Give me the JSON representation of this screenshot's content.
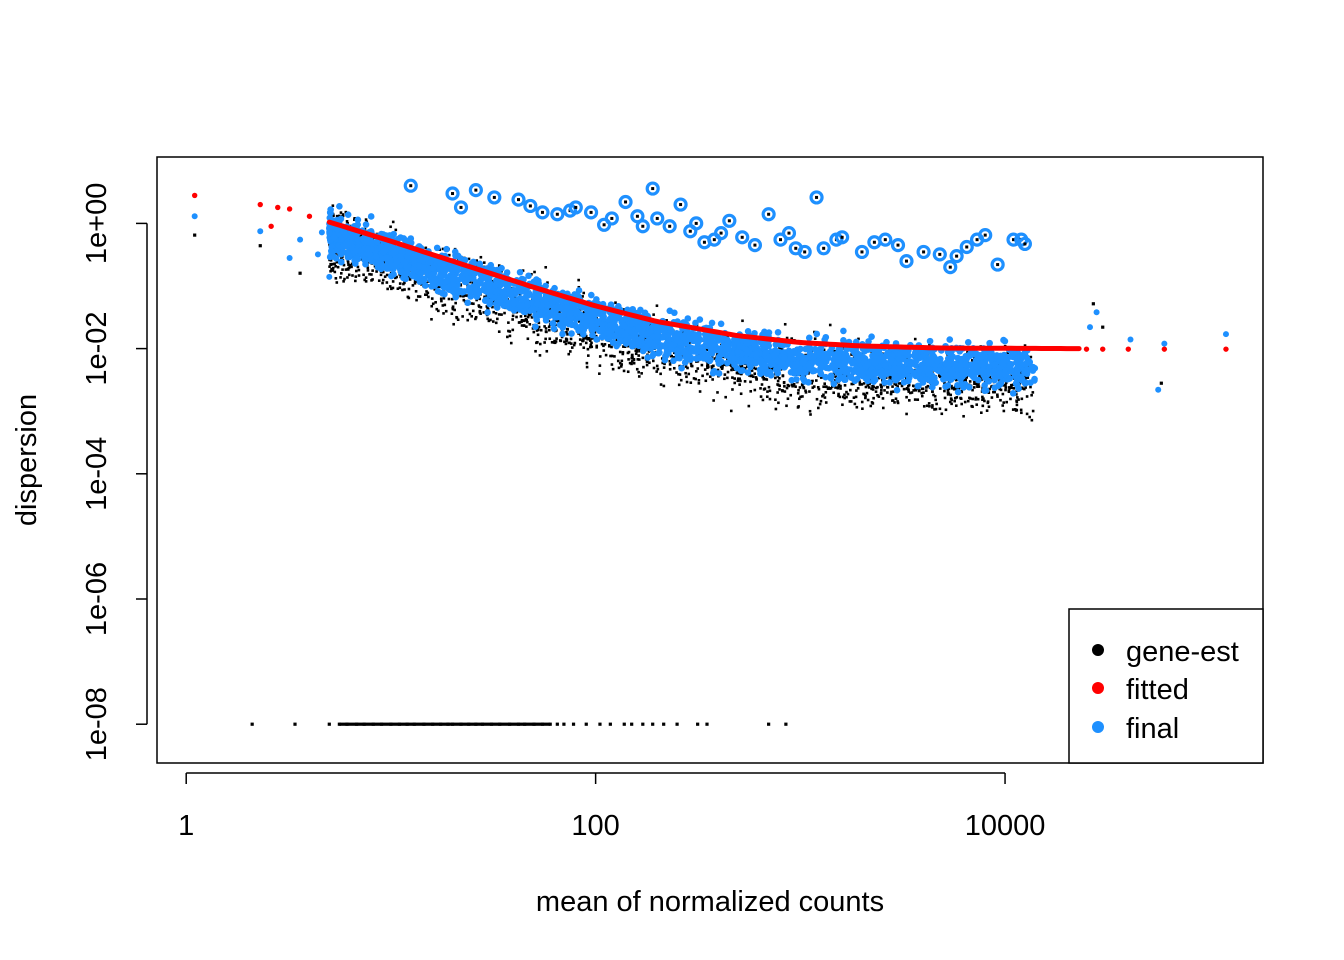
{
  "chart_data": {
    "type": "scatter",
    "xlabel": "mean of normalized counts",
    "ylabel": "dispersion",
    "x_scale": "log10",
    "y_scale": "log10",
    "xlim": [
      0.72,
      182000
    ],
    "ylim": [
      2.4e-09,
      11.5
    ],
    "x_ticks": [
      1,
      100,
      10000
    ],
    "x_tick_labels": [
      "1",
      "100",
      "10000"
    ],
    "y_ticks": [
      1e-08,
      1e-06,
      0.0001,
      0.01,
      1
    ],
    "y_tick_labels": [
      "1e-08",
      "1e-06",
      "1e-04",
      "1e-02",
      "1e+00"
    ],
    "legend": {
      "position": "bottom-right",
      "entries": [
        {
          "label": "gene-est",
          "color": "#000000"
        },
        {
          "label": "fitted",
          "color": "#ff0000"
        },
        {
          "label": "final",
          "color": "#1e90ff"
        }
      ]
    },
    "colors": {
      "gene_est": "#000000",
      "fitted": "#ff0000",
      "final": "#1e90ff"
    },
    "fitted_trend": {
      "x": [
        5,
        10,
        20,
        50,
        100,
        200,
        500,
        1000,
        2000,
        5000,
        10000,
        23000
      ],
      "y": [
        1.05,
        0.52,
        0.25,
        0.095,
        0.048,
        0.027,
        0.016,
        0.0125,
        0.011,
        0.0102,
        0.0101,
        0.01
      ]
    },
    "sparse_points": {
      "fitted": [
        {
          "x": 1.1,
          "y": 2.8
        },
        {
          "x": 2.3,
          "y": 2.0
        },
        {
          "x": 2.8,
          "y": 1.8
        },
        {
          "x": 3.2,
          "y": 1.7
        },
        {
          "x": 2.6,
          "y": 0.9
        },
        {
          "x": 4.0,
          "y": 1.3
        },
        {
          "x": 25000,
          "y": 0.0098
        },
        {
          "x": 30000,
          "y": 0.0098
        },
        {
          "x": 40000,
          "y": 0.0098
        },
        {
          "x": 60000,
          "y": 0.0098
        },
        {
          "x": 120000,
          "y": 0.0098
        }
      ],
      "final": [
        {
          "x": 1.1,
          "y": 1.3
        },
        {
          "x": 2.3,
          "y": 0.75
        },
        {
          "x": 3.6,
          "y": 0.55
        },
        {
          "x": 3.2,
          "y": 0.28
        },
        {
          "x": 4.6,
          "y": 0.72
        },
        {
          "x": 4.4,
          "y": 0.32
        },
        {
          "x": 5.0,
          "y": 0.14
        },
        {
          "x": 28000,
          "y": 0.038
        },
        {
          "x": 26000,
          "y": 0.022
        },
        {
          "x": 41000,
          "y": 0.014
        },
        {
          "x": 60000,
          "y": 0.012
        },
        {
          "x": 56000,
          "y": 0.0022
        },
        {
          "x": 120000,
          "y": 0.017
        }
      ],
      "gene_est": [
        {
          "x": 1.1,
          "y": 0.65
        },
        {
          "x": 2.3,
          "y": 0.44
        },
        {
          "x": 3.6,
          "y": 0.16
        },
        {
          "x": 27000,
          "y": 0.052
        },
        {
          "x": 30000,
          "y": 0.022
        },
        {
          "x": 58000,
          "y": 0.0028
        }
      ]
    },
    "zero_dispersion_genes": {
      "y": 1e-08,
      "x": [
        2.1,
        3.4,
        5.0,
        5.6,
        6.1,
        6.8,
        7.4,
        8.2,
        9.0,
        10,
        11,
        12,
        13,
        14.5,
        16,
        17.5,
        19,
        20,
        22,
        24,
        26,
        28,
        31,
        34,
        38,
        42,
        45,
        50,
        55,
        60,
        65,
        70,
        78,
        90,
        105,
        118,
        138,
        150,
        170,
        190,
        215,
        250,
        315,
        350,
        700,
        850
      ]
    },
    "outliers": {
      "x": [
        12.5,
        20,
        22,
        26,
        32,
        42,
        48,
        55,
        65,
        75,
        80,
        95,
        110,
        120,
        140,
        160,
        170,
        190,
        200,
        230,
        260,
        290,
        310,
        340,
        380,
        410,
        450,
        520,
        600,
        700,
        800,
        880,
        950,
        1050,
        1200,
        1300,
        1500,
        1600,
        2000,
        2300,
        2600,
        3000,
        3300,
        4000,
        4800,
        5400,
        5800,
        6500,
        7300,
        8000,
        9200,
        11000,
        12000,
        12500
      ],
      "y": [
        4.0,
        3.0,
        1.8,
        3.4,
        2.6,
        2.4,
        1.9,
        1.5,
        1.4,
        1.6,
        1.8,
        1.5,
        0.95,
        1.2,
        2.2,
        1.3,
        0.9,
        3.6,
        1.2,
        0.9,
        2.0,
        0.75,
        1.0,
        0.5,
        0.55,
        0.7,
        1.1,
        0.6,
        0.45,
        1.4,
        0.55,
        0.7,
        0.4,
        0.35,
        2.6,
        0.4,
        0.55,
        0.6,
        0.35,
        0.5,
        0.55,
        0.45,
        0.25,
        0.35,
        0.32,
        0.2,
        0.3,
        0.42,
        0.55,
        0.65,
        0.22,
        0.55,
        0.55,
        0.47
      ]
    }
  }
}
